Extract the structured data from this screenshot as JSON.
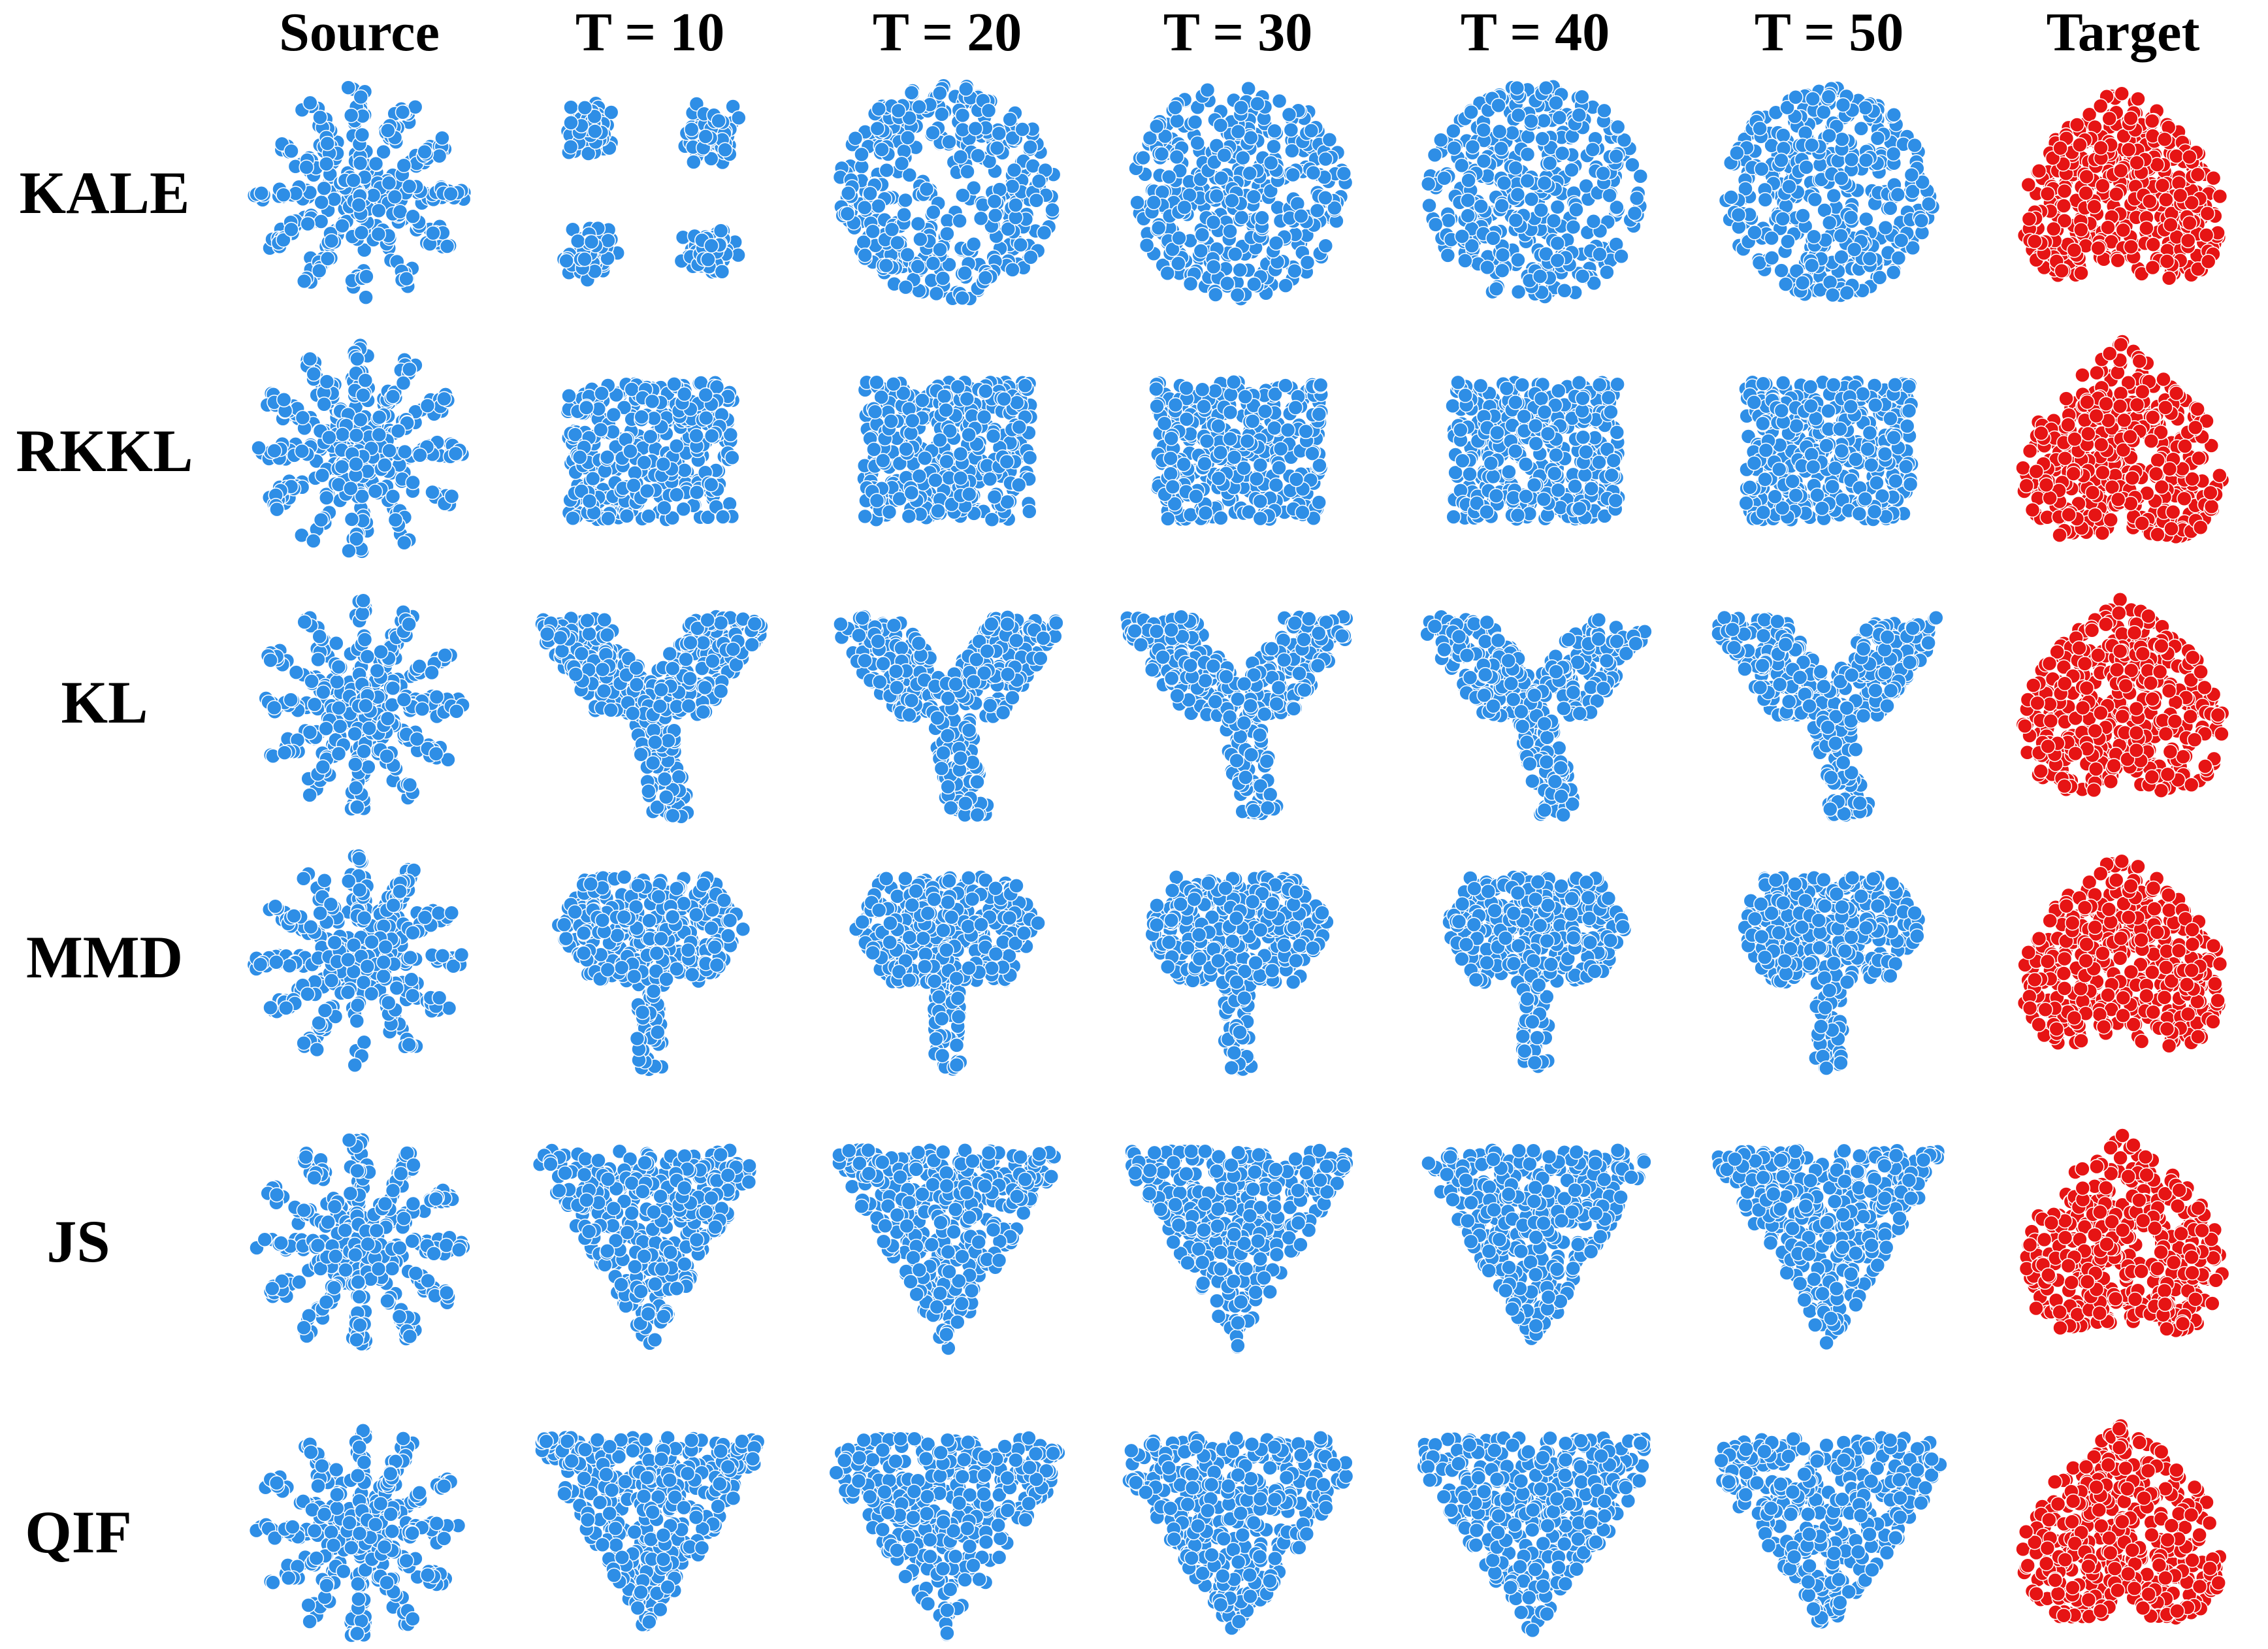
{
  "chart_data": {
    "type": "scatter",
    "columns": [
      "Source",
      "T = 10",
      "T = 20",
      "T = 30",
      "T = 40",
      "T = 50",
      "Target"
    ],
    "rows": [
      "KALE",
      "RKKL",
      "KL",
      "MMD",
      "JS",
      "QIF"
    ],
    "series_colors": {
      "generated": "#2e8ee6",
      "target": "#e61414"
    },
    "panel_shapes": [
      [
        "flower",
        "four-lobes",
        "ring-blob",
        "pentagon-blob",
        "pentagon-blob",
        "round-blob",
        "heart"
      ],
      [
        "flower",
        "square",
        "square",
        "square",
        "square",
        "square",
        "heart"
      ],
      [
        "flower",
        "y-shape",
        "y-shape",
        "y-shape",
        "y-shape",
        "y-shape",
        "heart"
      ],
      [
        "flower",
        "tree",
        "tree",
        "tree",
        "tree",
        "tree",
        "heart"
      ],
      [
        "flower",
        "blob-triangle",
        "blob-triangle",
        "blob-triangle",
        "blob-triangle",
        "blob-triangle",
        "heart"
      ],
      [
        "flower",
        "blob-triangle",
        "heart-blob",
        "heart-blob",
        "heart-blob",
        "heart-blob",
        "heart"
      ]
    ],
    "grid": false,
    "axes_visible": false
  }
}
